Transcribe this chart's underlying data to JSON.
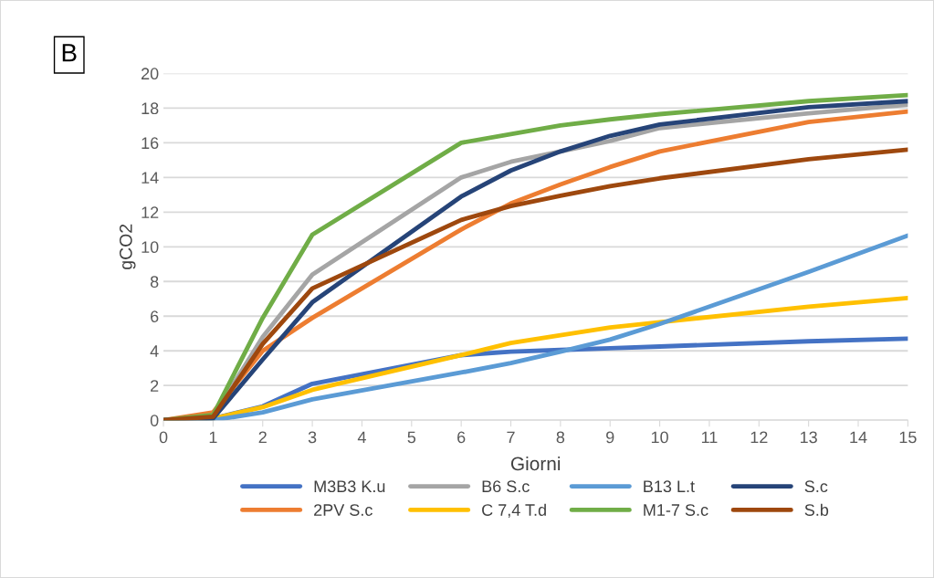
{
  "chart_data": {
    "type": "line",
    "xlabel": "Giorni",
    "ylabel": "gCO2",
    "annotations": [
      "B"
    ],
    "x": [
      0,
      1,
      2,
      3,
      6,
      7,
      8,
      9,
      10,
      13,
      15
    ],
    "xlim": [
      0,
      15
    ],
    "xticks": [
      0,
      1,
      2,
      3,
      4,
      5,
      6,
      7,
      8,
      9,
      10,
      11,
      12,
      13,
      14,
      15
    ],
    "ylim": [
      0,
      20
    ],
    "yticks": [
      0,
      2,
      4,
      6,
      8,
      10,
      12,
      14,
      16,
      18,
      20
    ],
    "grid": "y",
    "legend": "bottom",
    "marker": "none",
    "line_style": "solid",
    "series": [
      {
        "name": "M3B3 K.u",
        "color": "#4472c4",
        "values": [
          0,
          0.1,
          0.8,
          2.1,
          3.75,
          3.95,
          4.05,
          4.15,
          4.25,
          4.55,
          4.7
        ]
      },
      {
        "name": "2PV S.c",
        "color": "#ed7d31",
        "values": [
          0,
          0.45,
          4.0,
          5.9,
          11.0,
          12.5,
          13.6,
          14.6,
          15.5,
          17.2,
          17.8
        ]
      },
      {
        "name": "B6 S.c",
        "color": "#a5a5a5",
        "values": [
          0,
          0.2,
          4.8,
          8.4,
          14.0,
          14.9,
          15.5,
          16.1,
          16.85,
          17.7,
          18.2
        ]
      },
      {
        "name": "C 7,4 T.d",
        "color": "#ffc000",
        "values": [
          0,
          0.1,
          0.75,
          1.75,
          3.75,
          4.45,
          4.9,
          5.35,
          5.65,
          6.55,
          7.05
        ]
      },
      {
        "name": "B13 L.t",
        "color": "#5b9bd5",
        "values": [
          0,
          0,
          0.45,
          1.2,
          2.75,
          3.3,
          3.95,
          4.65,
          5.55,
          8.55,
          10.65
        ]
      },
      {
        "name": "M1-7 S.c",
        "color": "#70ad47",
        "values": [
          0,
          0.3,
          5.9,
          10.7,
          16.0,
          16.5,
          17.0,
          17.35,
          17.65,
          18.4,
          18.75
        ]
      },
      {
        "name": "S.c",
        "color": "#264478",
        "values": [
          0,
          0.1,
          3.5,
          6.8,
          12.9,
          14.4,
          15.5,
          16.4,
          17.05,
          18.05,
          18.4
        ]
      },
      {
        "name": "S.b",
        "color": "#9e480e",
        "values": [
          0,
          0.2,
          4.4,
          7.6,
          11.55,
          12.35,
          12.95,
          13.5,
          13.95,
          15.05,
          15.6
        ]
      }
    ]
  }
}
